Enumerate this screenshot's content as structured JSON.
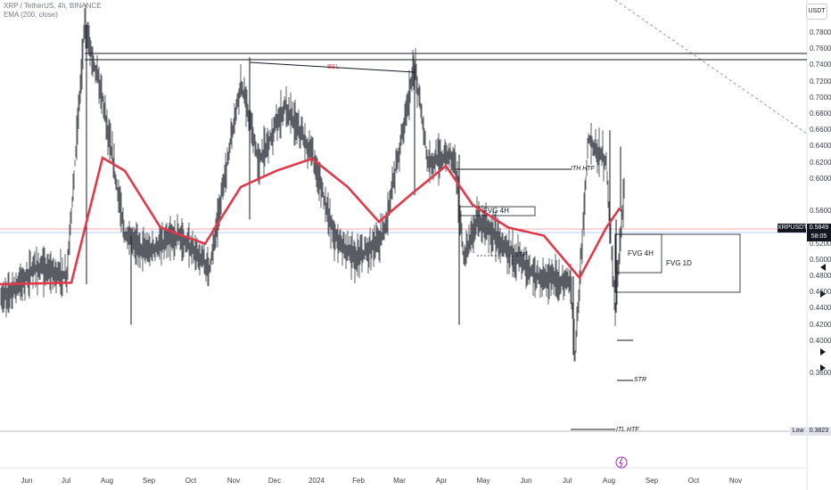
{
  "header": {
    "symbol_line": "XRP / TetherUS, 4h, BINANCE",
    "indicator_line": "EMA (200, close)"
  },
  "currency_button": "USDT",
  "price_axis": [
    "0.7800",
    "0.7600",
    "0.7400",
    "0.7200",
    "0.7000",
    "0.6800",
    "0.6600",
    "0.6400",
    "0.6200",
    "0.6000",
    "0.5600",
    "0.5400",
    "0.5200",
    "0.5000",
    "0.4800",
    "0.4600",
    "0.4400",
    "0.4200",
    "0.4000",
    "0.3600"
  ],
  "time_axis": [
    "Jun",
    "Jul",
    "Aug",
    "Sep",
    "Oct",
    "Nov",
    "Dec",
    "2024",
    "Feb",
    "Mar",
    "Apr",
    "May",
    "Jun",
    "Jul",
    "Aug",
    "Sep",
    "Oct",
    "Nov"
  ],
  "current_price": {
    "symbol": "XRPUSDT",
    "price": "0.5849",
    "countdown": "58:05"
  },
  "low_marker": {
    "label": "Low",
    "value": "0.3823"
  },
  "annotations": {
    "bsl": "BSL",
    "ith_htf": "ITH HTF",
    "fvg_4h_left": "FVG 4H",
    "one_tp": "1TP",
    "fvg_4h_right": "FVG 4H",
    "fvg_1d": "FVG 1D",
    "str": "STR",
    "itl_htf": "ITL HTF"
  },
  "colors": {
    "ema": "#e03a4a",
    "candles": "#131722",
    "bsl": "#f23645",
    "price_tag": "#131722"
  },
  "chart_data": {
    "type": "candlestick",
    "series": [
      {
        "name": "EMA (200, close)"
      }
    ],
    "ema_200": [
      [
        0,
        0.47
      ],
      [
        80,
        0.472
      ],
      [
        115,
        0.626
      ],
      [
        140,
        0.61
      ],
      [
        180,
        0.54
      ],
      [
        230,
        0.52
      ],
      [
        270,
        0.59
      ],
      [
        310,
        0.61
      ],
      [
        350,
        0.625
      ],
      [
        390,
        0.59
      ],
      [
        425,
        0.547
      ],
      [
        460,
        0.58
      ],
      [
        500,
        0.616
      ],
      [
        530,
        0.568
      ],
      [
        570,
        0.54
      ],
      [
        610,
        0.53
      ],
      [
        650,
        0.478
      ],
      [
        680,
        0.54
      ],
      [
        695,
        0.564
      ]
    ],
    "price_path": [
      [
        0,
        0.45
      ],
      [
        40,
        0.49
      ],
      [
        75,
        0.48
      ],
      [
        95,
        0.79
      ],
      [
        115,
        0.7
      ],
      [
        140,
        0.53
      ],
      [
        165,
        0.51
      ],
      [
        200,
        0.53
      ],
      [
        235,
        0.49
      ],
      [
        270,
        0.72
      ],
      [
        290,
        0.62
      ],
      [
        320,
        0.69
      ],
      [
        350,
        0.63
      ],
      [
        375,
        0.53
      ],
      [
        400,
        0.5
      ],
      [
        430,
        0.53
      ],
      [
        465,
        0.74
      ],
      [
        480,
        0.62
      ],
      [
        510,
        0.63
      ],
      [
        520,
        0.5
      ],
      [
        535,
        0.55
      ],
      [
        565,
        0.52
      ],
      [
        600,
        0.48
      ],
      [
        640,
        0.47
      ],
      [
        645,
        0.383
      ],
      [
        660,
        0.65
      ],
      [
        680,
        0.62
      ],
      [
        690,
        0.44
      ],
      [
        700,
        0.5849
      ]
    ],
    "ylim": [
      0.36,
      0.79
    ]
  }
}
